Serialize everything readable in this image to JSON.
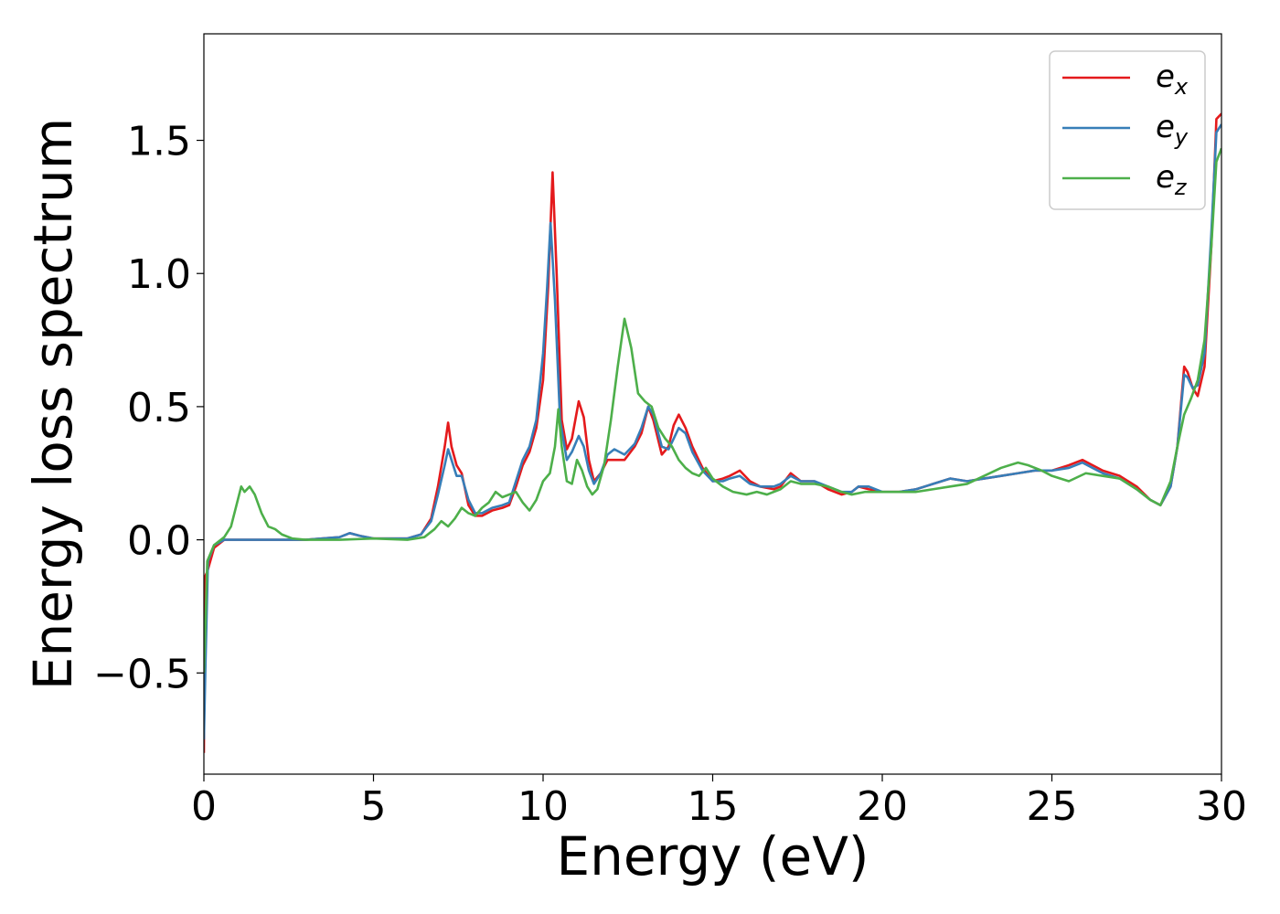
{
  "chart_data": {
    "type": "line",
    "xlabel": "Energy (eV)",
    "ylabel": "Energy loss spectrum",
    "xlim": [
      0,
      30
    ],
    "ylim": [
      -0.88,
      1.9
    ],
    "xticks": [
      0,
      5,
      10,
      15,
      20,
      25,
      30
    ],
    "xtick_labels": [
      "0",
      "5",
      "10",
      "15",
      "20",
      "25",
      "30"
    ],
    "yticks": [
      -0.5,
      0.0,
      0.5,
      1.0,
      1.5
    ],
    "ytick_labels": [
      "−0.5",
      "0.0",
      "0.5",
      "1.0",
      "1.5"
    ],
    "grid": false,
    "legend_position": "top-right",
    "series": [
      {
        "name": "e_x",
        "label_base": "e",
        "label_sub": "x",
        "color": "#e41a1c",
        "points": [
          [
            0.0,
            -0.8
          ],
          [
            0.03,
            -0.14
          ],
          [
            0.1,
            -0.12
          ],
          [
            0.3,
            -0.03
          ],
          [
            0.6,
            0.0
          ],
          [
            1.0,
            0.0
          ],
          [
            2.0,
            0.0
          ],
          [
            3.0,
            0.0
          ],
          [
            4.0,
            0.01
          ],
          [
            4.3,
            0.025
          ],
          [
            4.6,
            0.015
          ],
          [
            5.0,
            0.005
          ],
          [
            6.0,
            0.005
          ],
          [
            6.4,
            0.02
          ],
          [
            6.7,
            0.08
          ],
          [
            6.9,
            0.2
          ],
          [
            7.1,
            0.35
          ],
          [
            7.2,
            0.44
          ],
          [
            7.3,
            0.35
          ],
          [
            7.45,
            0.28
          ],
          [
            7.6,
            0.25
          ],
          [
            7.8,
            0.13
          ],
          [
            8.0,
            0.09
          ],
          [
            8.2,
            0.09
          ],
          [
            8.5,
            0.11
          ],
          [
            8.8,
            0.12
          ],
          [
            9.0,
            0.13
          ],
          [
            9.2,
            0.2
          ],
          [
            9.4,
            0.28
          ],
          [
            9.6,
            0.33
          ],
          [
            9.8,
            0.42
          ],
          [
            10.0,
            0.6
          ],
          [
            10.15,
            0.95
          ],
          [
            10.28,
            1.38
          ],
          [
            10.4,
            1.0
          ],
          [
            10.55,
            0.45
          ],
          [
            10.7,
            0.34
          ],
          [
            10.85,
            0.38
          ],
          [
            11.05,
            0.52
          ],
          [
            11.2,
            0.46
          ],
          [
            11.35,
            0.3
          ],
          [
            11.5,
            0.22
          ],
          [
            11.7,
            0.25
          ],
          [
            11.9,
            0.3
          ],
          [
            12.1,
            0.3
          ],
          [
            12.4,
            0.3
          ],
          [
            12.7,
            0.35
          ],
          [
            12.9,
            0.4
          ],
          [
            13.1,
            0.5
          ],
          [
            13.25,
            0.45
          ],
          [
            13.5,
            0.32
          ],
          [
            13.7,
            0.35
          ],
          [
            13.85,
            0.43
          ],
          [
            14.0,
            0.47
          ],
          [
            14.2,
            0.42
          ],
          [
            14.4,
            0.35
          ],
          [
            14.7,
            0.27
          ],
          [
            15.0,
            0.22
          ],
          [
            15.3,
            0.23
          ],
          [
            15.5,
            0.24
          ],
          [
            15.8,
            0.26
          ],
          [
            16.1,
            0.22
          ],
          [
            16.4,
            0.2
          ],
          [
            16.8,
            0.19
          ],
          [
            17.0,
            0.2
          ],
          [
            17.3,
            0.25
          ],
          [
            17.6,
            0.22
          ],
          [
            18.0,
            0.22
          ],
          [
            18.4,
            0.19
          ],
          [
            18.8,
            0.17
          ],
          [
            19.1,
            0.18
          ],
          [
            19.3,
            0.2
          ],
          [
            19.6,
            0.19
          ],
          [
            20.0,
            0.18
          ],
          [
            20.5,
            0.18
          ],
          [
            21.0,
            0.19
          ],
          [
            21.5,
            0.21
          ],
          [
            22.0,
            0.23
          ],
          [
            22.5,
            0.22
          ],
          [
            23.0,
            0.23
          ],
          [
            23.5,
            0.24
          ],
          [
            24.0,
            0.25
          ],
          [
            24.5,
            0.26
          ],
          [
            25.0,
            0.26
          ],
          [
            25.5,
            0.28
          ],
          [
            25.9,
            0.3
          ],
          [
            26.2,
            0.28
          ],
          [
            26.5,
            0.26
          ],
          [
            27.0,
            0.24
          ],
          [
            27.5,
            0.2
          ],
          [
            27.9,
            0.15
          ],
          [
            28.2,
            0.13
          ],
          [
            28.5,
            0.2
          ],
          [
            28.7,
            0.35
          ],
          [
            28.9,
            0.65
          ],
          [
            29.0,
            0.63
          ],
          [
            29.15,
            0.57
          ],
          [
            29.3,
            0.54
          ],
          [
            29.5,
            0.65
          ],
          [
            29.7,
            1.1
          ],
          [
            29.85,
            1.58
          ],
          [
            30.0,
            1.6
          ]
        ]
      },
      {
        "name": "e_y",
        "label_base": "e",
        "label_sub": "y",
        "color": "#377eb8",
        "points": [
          [
            0.0,
            -0.75
          ],
          [
            0.05,
            -0.45
          ],
          [
            0.12,
            -0.08
          ],
          [
            0.3,
            -0.02
          ],
          [
            0.6,
            0.0
          ],
          [
            1.0,
            0.0
          ],
          [
            2.0,
            0.0
          ],
          [
            3.0,
            0.0
          ],
          [
            4.0,
            0.01
          ],
          [
            4.3,
            0.025
          ],
          [
            4.6,
            0.015
          ],
          [
            5.0,
            0.005
          ],
          [
            6.0,
            0.005
          ],
          [
            6.4,
            0.02
          ],
          [
            6.7,
            0.07
          ],
          [
            6.9,
            0.17
          ],
          [
            7.1,
            0.28
          ],
          [
            7.2,
            0.34
          ],
          [
            7.3,
            0.3
          ],
          [
            7.45,
            0.24
          ],
          [
            7.6,
            0.24
          ],
          [
            7.8,
            0.15
          ],
          [
            8.0,
            0.1
          ],
          [
            8.2,
            0.1
          ],
          [
            8.5,
            0.12
          ],
          [
            8.8,
            0.13
          ],
          [
            9.0,
            0.14
          ],
          [
            9.2,
            0.22
          ],
          [
            9.4,
            0.3
          ],
          [
            9.6,
            0.35
          ],
          [
            9.8,
            0.45
          ],
          [
            10.0,
            0.7
          ],
          [
            10.12,
            0.95
          ],
          [
            10.22,
            1.19
          ],
          [
            10.35,
            0.9
          ],
          [
            10.5,
            0.45
          ],
          [
            10.7,
            0.3
          ],
          [
            10.85,
            0.33
          ],
          [
            11.05,
            0.39
          ],
          [
            11.2,
            0.35
          ],
          [
            11.35,
            0.26
          ],
          [
            11.5,
            0.21
          ],
          [
            11.7,
            0.25
          ],
          [
            11.9,
            0.32
          ],
          [
            12.1,
            0.34
          ],
          [
            12.4,
            0.32
          ],
          [
            12.7,
            0.36
          ],
          [
            12.9,
            0.42
          ],
          [
            13.1,
            0.5
          ],
          [
            13.25,
            0.47
          ],
          [
            13.5,
            0.35
          ],
          [
            13.7,
            0.34
          ],
          [
            13.85,
            0.38
          ],
          [
            14.0,
            0.42
          ],
          [
            14.2,
            0.4
          ],
          [
            14.4,
            0.33
          ],
          [
            14.7,
            0.26
          ],
          [
            15.0,
            0.22
          ],
          [
            15.3,
            0.22
          ],
          [
            15.5,
            0.23
          ],
          [
            15.8,
            0.24
          ],
          [
            16.1,
            0.21
          ],
          [
            16.4,
            0.2
          ],
          [
            16.8,
            0.2
          ],
          [
            17.0,
            0.21
          ],
          [
            17.3,
            0.24
          ],
          [
            17.6,
            0.22
          ],
          [
            18.0,
            0.22
          ],
          [
            18.4,
            0.2
          ],
          [
            18.8,
            0.18
          ],
          [
            19.1,
            0.18
          ],
          [
            19.3,
            0.2
          ],
          [
            19.6,
            0.2
          ],
          [
            20.0,
            0.18
          ],
          [
            20.5,
            0.18
          ],
          [
            21.0,
            0.19
          ],
          [
            21.5,
            0.21
          ],
          [
            22.0,
            0.23
          ],
          [
            22.5,
            0.22
          ],
          [
            23.0,
            0.23
          ],
          [
            23.5,
            0.24
          ],
          [
            24.0,
            0.25
          ],
          [
            24.5,
            0.26
          ],
          [
            25.0,
            0.26
          ],
          [
            25.5,
            0.27
          ],
          [
            25.9,
            0.29
          ],
          [
            26.2,
            0.27
          ],
          [
            26.5,
            0.25
          ],
          [
            27.0,
            0.23
          ],
          [
            27.5,
            0.19
          ],
          [
            27.9,
            0.15
          ],
          [
            28.2,
            0.13
          ],
          [
            28.5,
            0.2
          ],
          [
            28.7,
            0.35
          ],
          [
            28.9,
            0.62
          ],
          [
            29.0,
            0.61
          ],
          [
            29.15,
            0.57
          ],
          [
            29.3,
            0.58
          ],
          [
            29.5,
            0.7
          ],
          [
            29.7,
            1.15
          ],
          [
            29.85,
            1.53
          ],
          [
            30.0,
            1.56
          ]
        ]
      },
      {
        "name": "e_z",
        "label_base": "e",
        "label_sub": "z",
        "color": "#4daf4a",
        "points": [
          [
            0.0,
            -0.5
          ],
          [
            0.05,
            -0.3
          ],
          [
            0.1,
            -0.08
          ],
          [
            0.3,
            -0.02
          ],
          [
            0.6,
            0.01
          ],
          [
            0.8,
            0.05
          ],
          [
            1.0,
            0.15
          ],
          [
            1.1,
            0.2
          ],
          [
            1.2,
            0.18
          ],
          [
            1.35,
            0.2
          ],
          [
            1.5,
            0.17
          ],
          [
            1.7,
            0.1
          ],
          [
            1.9,
            0.05
          ],
          [
            2.1,
            0.04
          ],
          [
            2.3,
            0.02
          ],
          [
            2.6,
            0.005
          ],
          [
            3.0,
            0.0
          ],
          [
            4.0,
            0.0
          ],
          [
            5.0,
            0.005
          ],
          [
            6.0,
            0.0
          ],
          [
            6.5,
            0.01
          ],
          [
            6.8,
            0.04
          ],
          [
            7.0,
            0.07
          ],
          [
            7.2,
            0.05
          ],
          [
            7.4,
            0.08
          ],
          [
            7.6,
            0.12
          ],
          [
            7.8,
            0.1
          ],
          [
            8.0,
            0.09
          ],
          [
            8.2,
            0.12
          ],
          [
            8.4,
            0.14
          ],
          [
            8.6,
            0.18
          ],
          [
            8.8,
            0.16
          ],
          [
            9.0,
            0.17
          ],
          [
            9.2,
            0.18
          ],
          [
            9.4,
            0.14
          ],
          [
            9.6,
            0.11
          ],
          [
            9.8,
            0.15
          ],
          [
            10.0,
            0.22
          ],
          [
            10.2,
            0.25
          ],
          [
            10.35,
            0.35
          ],
          [
            10.45,
            0.49
          ],
          [
            10.55,
            0.35
          ],
          [
            10.7,
            0.22
          ],
          [
            10.85,
            0.21
          ],
          [
            11.0,
            0.3
          ],
          [
            11.15,
            0.26
          ],
          [
            11.3,
            0.2
          ],
          [
            11.45,
            0.17
          ],
          [
            11.6,
            0.19
          ],
          [
            11.8,
            0.28
          ],
          [
            12.0,
            0.45
          ],
          [
            12.2,
            0.65
          ],
          [
            12.4,
            0.83
          ],
          [
            12.6,
            0.72
          ],
          [
            12.8,
            0.55
          ],
          [
            13.0,
            0.52
          ],
          [
            13.2,
            0.5
          ],
          [
            13.4,
            0.42
          ],
          [
            13.6,
            0.38
          ],
          [
            13.8,
            0.35
          ],
          [
            14.0,
            0.3
          ],
          [
            14.2,
            0.27
          ],
          [
            14.4,
            0.25
          ],
          [
            14.6,
            0.24
          ],
          [
            14.8,
            0.27
          ],
          [
            15.0,
            0.23
          ],
          [
            15.3,
            0.2
          ],
          [
            15.6,
            0.18
          ],
          [
            16.0,
            0.17
          ],
          [
            16.3,
            0.18
          ],
          [
            16.6,
            0.17
          ],
          [
            17.0,
            0.19
          ],
          [
            17.3,
            0.22
          ],
          [
            17.6,
            0.21
          ],
          [
            18.0,
            0.21
          ],
          [
            18.4,
            0.2
          ],
          [
            18.8,
            0.18
          ],
          [
            19.1,
            0.17
          ],
          [
            19.5,
            0.18
          ],
          [
            20.0,
            0.18
          ],
          [
            20.5,
            0.18
          ],
          [
            21.0,
            0.18
          ],
          [
            21.5,
            0.19
          ],
          [
            22.0,
            0.2
          ],
          [
            22.5,
            0.21
          ],
          [
            23.0,
            0.24
          ],
          [
            23.5,
            0.27
          ],
          [
            24.0,
            0.29
          ],
          [
            24.3,
            0.28
          ],
          [
            24.7,
            0.26
          ],
          [
            25.0,
            0.24
          ],
          [
            25.5,
            0.22
          ],
          [
            26.0,
            0.25
          ],
          [
            26.5,
            0.24
          ],
          [
            27.0,
            0.23
          ],
          [
            27.5,
            0.19
          ],
          [
            27.9,
            0.15
          ],
          [
            28.2,
            0.13
          ],
          [
            28.5,
            0.22
          ],
          [
            28.7,
            0.35
          ],
          [
            28.9,
            0.47
          ],
          [
            29.1,
            0.53
          ],
          [
            29.3,
            0.6
          ],
          [
            29.5,
            0.75
          ],
          [
            29.7,
            1.1
          ],
          [
            29.85,
            1.42
          ],
          [
            30.0,
            1.47
          ]
        ]
      }
    ]
  }
}
